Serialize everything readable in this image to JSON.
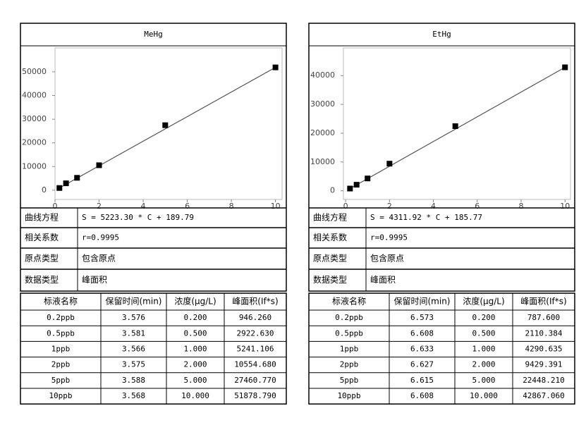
{
  "chart_data": [
    {
      "type": "scatter",
      "title": "MeHg",
      "x": [
        0.2,
        0.5,
        1,
        2,
        5,
        10
      ],
      "values": [
        946.26,
        2922.63,
        5241.106,
        10554.68,
        27460.77,
        51878.79
      ],
      "xlim": [
        0,
        10.3
      ],
      "xticks": [
        0,
        2,
        4,
        6,
        8,
        10
      ],
      "ylim": [
        -3900,
        60100
      ],
      "yticks": [
        0,
        10000,
        20000,
        30000,
        40000,
        50000
      ],
      "color": "#000000",
      "line_color": "#555555",
      "grid": false
    },
    {
      "type": "scatter",
      "title": "EtHg",
      "x": [
        0.2,
        0.5,
        1,
        2,
        5,
        10
      ],
      "values": [
        787.6,
        2110.384,
        4290.635,
        9429.391,
        22448.21,
        42867.06
      ],
      "xlim": [
        -0.1,
        10.25
      ],
      "xticks": [
        0,
        2,
        4,
        6,
        8,
        10
      ],
      "ylim": [
        -3000,
        49600
      ],
      "yticks": [
        0,
        10000,
        20000,
        30000,
        40000
      ],
      "color": "#000000",
      "line_color": "#555555",
      "grid": false
    }
  ],
  "panels": [
    {
      "info": [
        [
          "曲线方程",
          "S = 5223.30 * C + 189.79"
        ],
        [
          "相关系数",
          "r=0.9995"
        ],
        [
          "原点类型",
          "包含原点"
        ],
        [
          "数据类型",
          "峰面积"
        ]
      ],
      "table": {
        "header": [
          "标液名称",
          "保留时间(min)",
          "浓度(μg/L)",
          "峰面积(If*s)"
        ],
        "rows": [
          [
            "0.2ppb",
            "3.576",
            "0.200",
            "946.260"
          ],
          [
            "0.5ppb",
            "3.581",
            "0.500",
            "2922.630"
          ],
          [
            "1ppb",
            "3.566",
            "1.000",
            "5241.106"
          ],
          [
            "2ppb",
            "3.575",
            "2.000",
            "10554.680"
          ],
          [
            "5ppb",
            "3.588",
            "5.000",
            "27460.770"
          ],
          [
            "10ppb",
            "3.568",
            "10.000",
            "51878.790"
          ]
        ]
      }
    },
    {
      "info": [
        [
          "曲线方程",
          "S = 4311.92 * C + 185.77"
        ],
        [
          "相关系数",
          "r=0.9995"
        ],
        [
          "原点类型",
          "包含原点"
        ],
        [
          "数据类型",
          "峰面积"
        ]
      ],
      "table": {
        "header": [
          "标液名称",
          "保留时间(min)",
          "浓度(μg/L)",
          "峰面积(If*s)"
        ],
        "rows": [
          [
            "0.2ppb",
            "6.573",
            "0.200",
            "787.600"
          ],
          [
            "0.5ppb",
            "6.608",
            "0.500",
            "2110.384"
          ],
          [
            "1ppb",
            "6.633",
            "1.000",
            "4290.635"
          ],
          [
            "2ppb",
            "6.627",
            "2.000",
            "9429.391"
          ],
          [
            "5ppb",
            "6.615",
            "5.000",
            "22448.210"
          ],
          [
            "10ppb",
            "6.608",
            "10.000",
            "42867.060"
          ]
        ]
      }
    }
  ]
}
